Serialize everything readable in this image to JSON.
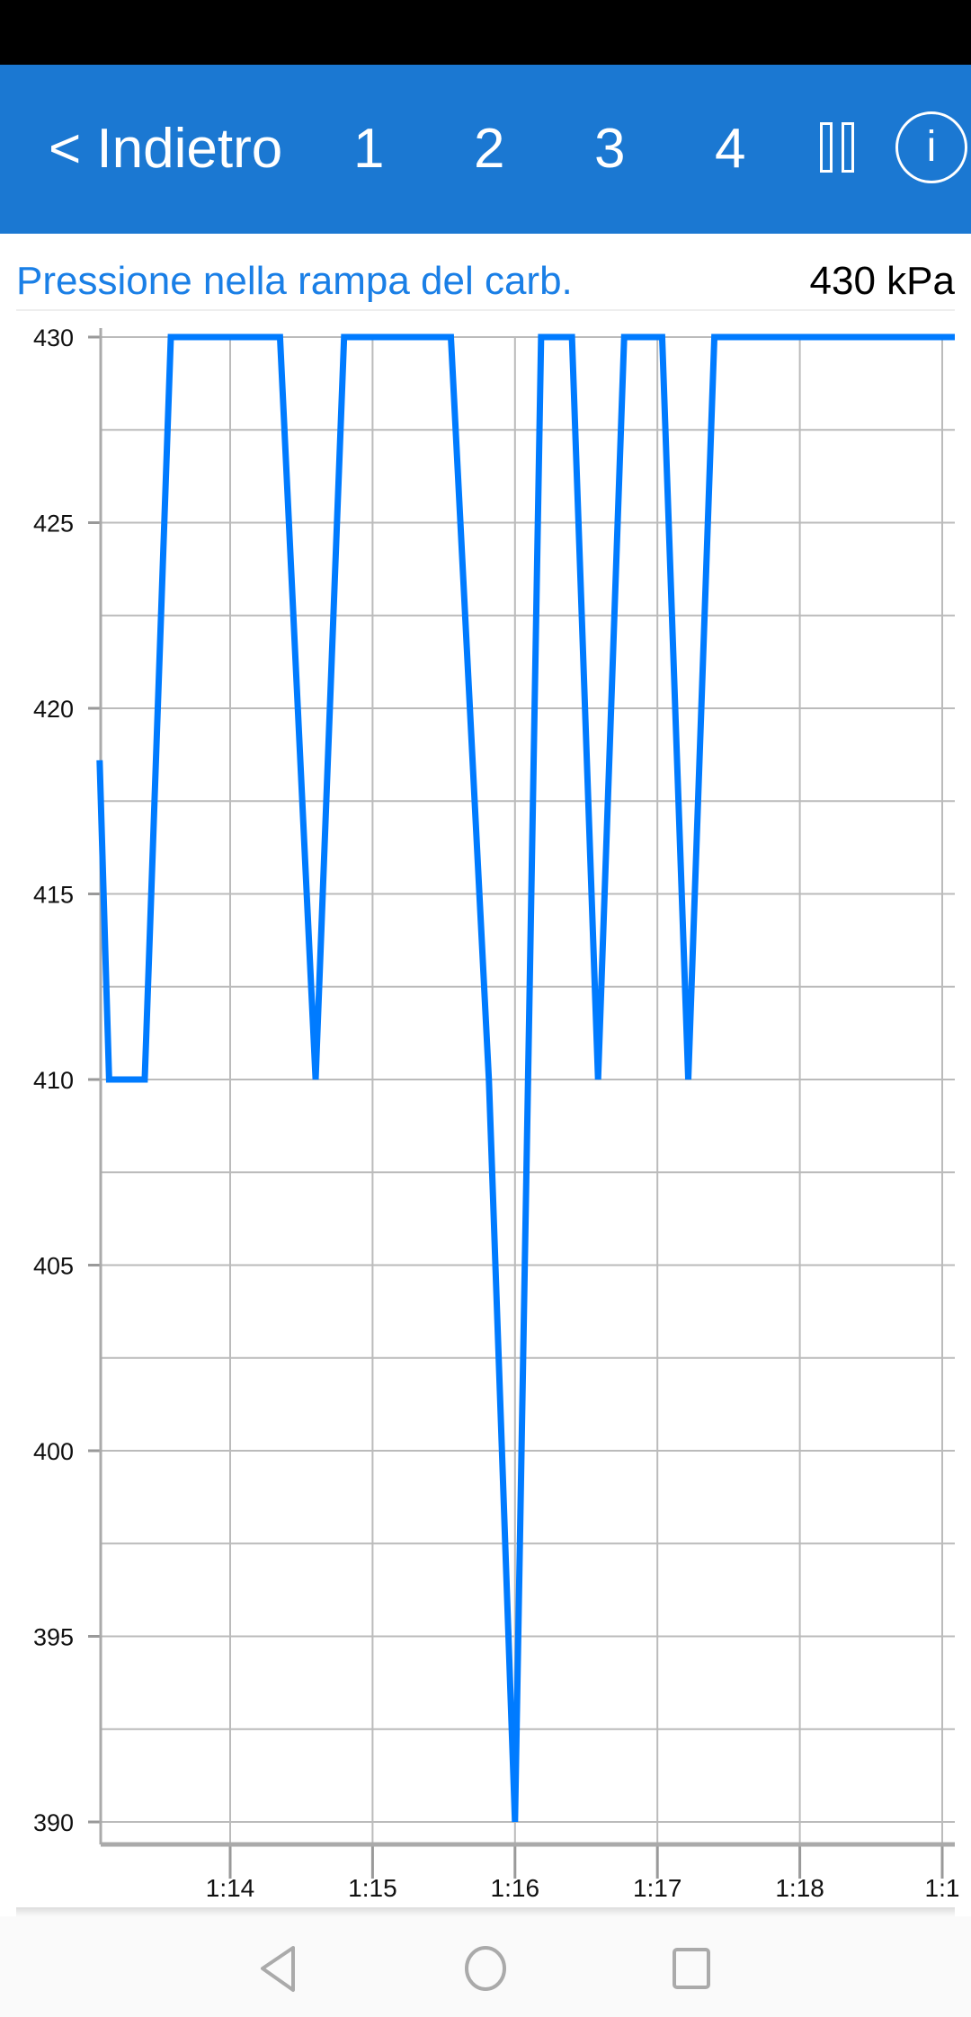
{
  "header": {
    "back_label": "< Indietro",
    "pages": [
      "1",
      "2",
      "3",
      "4"
    ],
    "pause_icon": "pause-icon",
    "info_icon": "info-icon",
    "info_glyph": "i",
    "background": "#1b78d2"
  },
  "sensor": {
    "name": "Pressione nella rampa del carb.",
    "current_value": "430  kPa"
  },
  "chart_data": {
    "type": "line",
    "title": "Pressione nella rampa del carb.",
    "xlabel": "",
    "ylabel": "",
    "ylim": [
      390,
      430
    ],
    "yticks": [
      "390",
      "395",
      "400",
      "405",
      "410",
      "415",
      "420",
      "425",
      "430"
    ],
    "xticks": [
      "1:14",
      "1:15",
      "1:16",
      "1:17",
      "1:18",
      "1:1"
    ],
    "grid": true,
    "line_color": "#007bff",
    "x": [
      "1:13:05",
      "1:13:09",
      "1:13:24",
      "1:13:35",
      "1:14:21",
      "1:14:36",
      "1:14:48",
      "1:15:33",
      "1:15:49",
      "1:16:00",
      "1:16:11",
      "1:16:24",
      "1:16:35",
      "1:16:46",
      "1:17:02",
      "1:17:13",
      "1:17:24",
      "1:19:07"
    ],
    "values": [
      418.6,
      410,
      410,
      430,
      430,
      410,
      430,
      430,
      410,
      390,
      430,
      430,
      410,
      430,
      430,
      410,
      430,
      430
    ]
  },
  "nav": {
    "icons": [
      "back-triangle-icon",
      "home-circle-icon",
      "recents-square-icon"
    ]
  }
}
